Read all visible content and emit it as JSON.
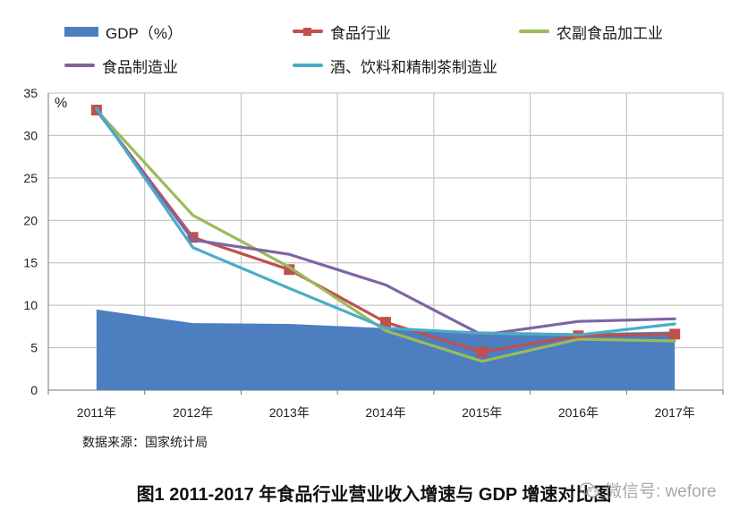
{
  "chart_data": {
    "type": "line",
    "title": "图1 2011-2017 年食品行业营业收入增速与 GDP 增速对比图",
    "ylabel": "%",
    "xlabel": "",
    "ylim": [
      0,
      35
    ],
    "yticks": [
      0,
      5,
      10,
      15,
      20,
      25,
      30,
      35
    ],
    "grid": true,
    "legend_position": "top",
    "categories": [
      "2011年",
      "2012年",
      "2013年",
      "2014年",
      "2015年",
      "2016年",
      "2017年"
    ],
    "series": [
      {
        "name": "GDP（%）",
        "kind": "area",
        "color": "#4d7ebf",
        "values": [
          9.5,
          7.9,
          7.8,
          7.3,
          6.9,
          6.7,
          6.9
        ]
      },
      {
        "name": "食品行业",
        "kind": "line-marker",
        "color": "#c0504d",
        "values": [
          33.0,
          18.0,
          14.2,
          8.0,
          4.5,
          6.4,
          6.6
        ]
      },
      {
        "name": "农副食品加工业",
        "kind": "line",
        "color": "#9bbb59",
        "values": [
          33.0,
          20.6,
          14.5,
          7.0,
          3.4,
          6.0,
          5.8
        ]
      },
      {
        "name": "食品制造业",
        "kind": "line",
        "color": "#8064a2",
        "values": [
          33.0,
          17.7,
          16.0,
          12.4,
          6.5,
          8.1,
          8.4
        ]
      },
      {
        "name": "酒、饮料和精制茶制造业",
        "kind": "line",
        "color": "#4bacc6",
        "values": [
          33.2,
          16.8,
          12.0,
          7.3,
          6.7,
          6.5,
          7.8
        ]
      }
    ]
  },
  "legend": {
    "gdp": "GDP（%）",
    "food": "食品行业",
    "agri": "农副食品加工业",
    "manu": "食品制造业",
    "bev": "酒、饮料和精制茶制造业"
  },
  "source": "数据来源：国家统计局",
  "caption": "图1 2011-2017 年食品行业营业收入增速与 GDP 增速对比图",
  "watermark": "微信号: wefore"
}
